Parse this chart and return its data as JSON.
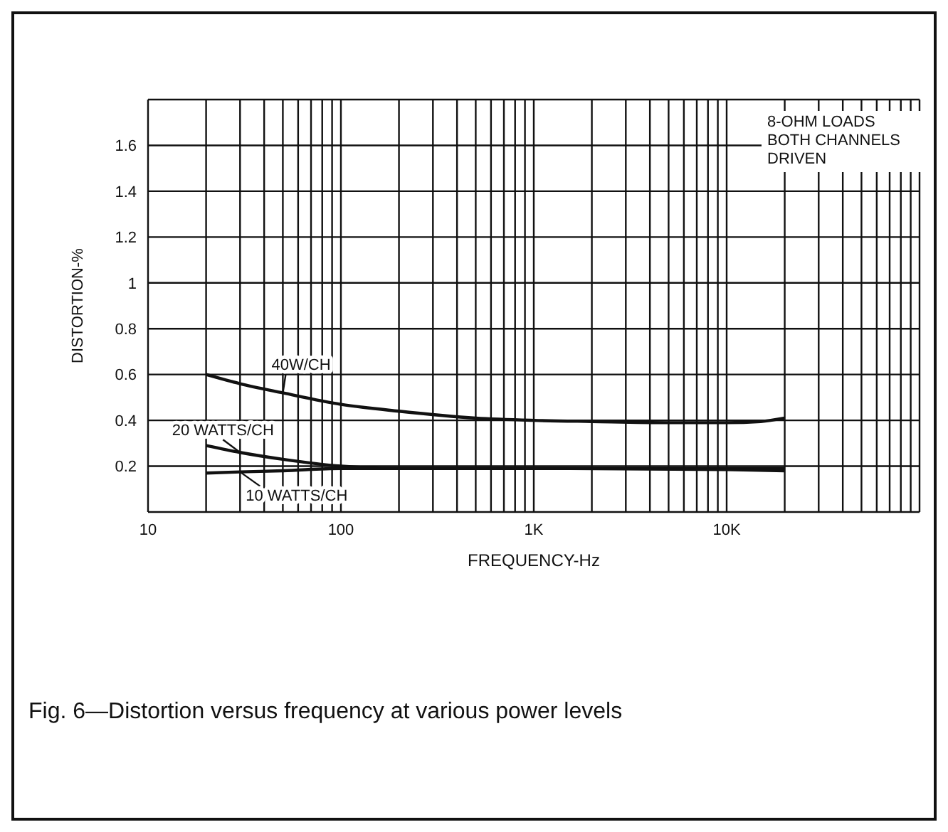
{
  "chart_data": {
    "type": "line",
    "xlabel": "FREQUENCY-Hz",
    "ylabel": "DISTORTION-%",
    "log": "x",
    "grid": true,
    "legend": false,
    "marker": "none",
    "line_style": "solid",
    "xlim": [
      10,
      100000
    ],
    "ylim": [
      0,
      1.8
    ],
    "xticks": [
      10,
      {
        "value": 20,
        "label": null
      },
      {
        "value": 30,
        "label": null
      },
      {
        "value": 40,
        "label": null
      },
      {
        "value": 50,
        "label": null
      },
      {
        "value": 60,
        "label": null
      },
      {
        "value": 70,
        "label": null
      },
      {
        "value": 80,
        "label": null
      },
      {
        "value": 90,
        "label": null
      },
      100,
      {
        "value": 200,
        "label": null
      },
      {
        "value": 300,
        "label": null
      },
      {
        "value": 400,
        "label": null
      },
      {
        "value": 500,
        "label": null
      },
      {
        "value": 600,
        "label": null
      },
      {
        "value": 700,
        "label": null
      },
      {
        "value": 800,
        "label": null
      },
      {
        "value": 900,
        "label": null
      },
      {
        "value": 1000,
        "label": "1K"
      },
      {
        "value": 2000,
        "label": null
      },
      {
        "value": 3000,
        "label": null
      },
      {
        "value": 4000,
        "label": null
      },
      {
        "value": 5000,
        "label": null
      },
      {
        "value": 6000,
        "label": null
      },
      {
        "value": 7000,
        "label": null
      },
      {
        "value": 8000,
        "label": null
      },
      {
        "value": 9000,
        "label": null
      },
      {
        "value": 10000,
        "label": "10K"
      },
      {
        "value": 20000,
        "label": null
      },
      {
        "value": 30000,
        "label": null
      },
      {
        "value": 40000,
        "label": null
      },
      {
        "value": 50000,
        "label": null
      },
      {
        "value": 60000,
        "label": null
      },
      {
        "value": 70000,
        "label": null
      },
      {
        "value": 80000,
        "label": null
      },
      {
        "value": 90000,
        "label": null
      }
    ],
    "yticks": [
      0.2,
      0.4,
      0.6,
      0.8,
      1.0,
      1.2,
      1.4,
      1.6
    ],
    "series": [
      {
        "color": "#111111",
        "x": [
          20,
          30,
          50,
          100,
          200,
          500,
          1000,
          2000,
          5000,
          10000,
          15000,
          20000
        ],
        "values": [
          0.6,
          0.56,
          0.52,
          0.47,
          0.44,
          0.41,
          0.4,
          0.395,
          0.39,
          0.39,
          0.395,
          0.41
        ]
      },
      {
        "color": "#111111",
        "x": [
          20,
          30,
          50,
          100,
          200,
          500,
          1000,
          5000,
          10000,
          20000
        ],
        "values": [
          0.29,
          0.26,
          0.23,
          0.2,
          0.19,
          0.19,
          0.19,
          0.19,
          0.19,
          0.19
        ]
      },
      {
        "color": "#111111",
        "x": [
          20,
          30,
          50,
          100,
          200,
          1000,
          10000,
          20000
        ],
        "values": [
          0.17,
          0.175,
          0.18,
          0.19,
          0.19,
          0.19,
          0.185,
          0.18
        ]
      }
    ],
    "annotations": [
      "40W/CH",
      "20 WATTS/CH",
      "10 WATTS/CH",
      "8-OHM LOADS\nBOTH CHANNELS\nDRIVEN",
      "Fig. 6—Distortion versus frequency at various power levels"
    ]
  }
}
